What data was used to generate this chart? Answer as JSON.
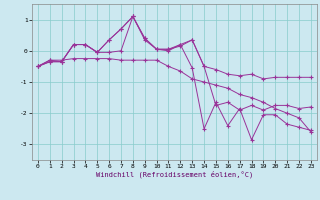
{
  "xlabel": "Windchill (Refroidissement éolien,°C)",
  "background_color": "#cce8f0",
  "line_color": "#993399",
  "grid_color": "#88cccc",
  "xlim": [
    -0.5,
    23.5
  ],
  "ylim": [
    -3.5,
    1.5
  ],
  "yticks": [
    -3,
    -2,
    -1,
    0,
    1
  ],
  "xticks": [
    0,
    1,
    2,
    3,
    4,
    5,
    6,
    7,
    8,
    9,
    10,
    11,
    12,
    13,
    14,
    15,
    16,
    17,
    18,
    19,
    20,
    21,
    22,
    23
  ],
  "series1_x": [
    0,
    1,
    2,
    3,
    4,
    5,
    6,
    7,
    8,
    9,
    10,
    11,
    12,
    13,
    14,
    15,
    16,
    17,
    18,
    19,
    20,
    21,
    22,
    23
  ],
  "series1_y": [
    -0.5,
    -0.35,
    -0.35,
    0.2,
    0.2,
    -0.05,
    -0.05,
    0.0,
    1.1,
    0.35,
    0.05,
    0.05,
    0.15,
    0.35,
    -0.5,
    -0.6,
    -0.75,
    -0.8,
    -0.75,
    -0.9,
    -0.85,
    -0.85,
    -0.85,
    -0.85
  ],
  "series2_x": [
    0,
    1,
    2,
    3,
    4,
    5,
    6,
    7,
    8,
    9,
    10,
    11,
    12,
    13,
    14,
    15,
    16,
    17,
    18,
    19,
    20,
    21,
    22,
    23
  ],
  "series2_y": [
    -0.5,
    -0.35,
    -0.35,
    0.2,
    0.2,
    -0.05,
    0.35,
    0.7,
    1.1,
    0.4,
    0.05,
    0.0,
    0.2,
    0.35,
    -0.5,
    -1.75,
    -1.65,
    -1.9,
    -1.75,
    -1.9,
    -1.75,
    -1.75,
    -1.85,
    -1.8
  ],
  "series3_x": [
    0,
    1,
    2,
    3,
    4,
    5,
    6,
    7,
    8,
    9,
    10,
    11,
    12,
    13,
    14,
    15,
    16,
    17,
    18,
    19,
    20,
    21,
    22,
    23
  ],
  "series3_y": [
    -0.5,
    -0.3,
    -0.35,
    0.2,
    0.2,
    -0.05,
    0.35,
    0.7,
    1.1,
    0.4,
    0.05,
    0.05,
    0.2,
    -0.55,
    -2.5,
    -1.65,
    -2.4,
    -1.85,
    -2.85,
    -2.05,
    -2.05,
    -2.35,
    -2.45,
    -2.55
  ],
  "series4_x": [
    0,
    1,
    2,
    3,
    4,
    5,
    6,
    7,
    8,
    9,
    10,
    11,
    12,
    13,
    14,
    15,
    16,
    17,
    18,
    19,
    20,
    21,
    22,
    23
  ],
  "series4_y": [
    -0.5,
    -0.3,
    -0.3,
    -0.25,
    -0.25,
    -0.25,
    -0.25,
    -0.3,
    -0.3,
    -0.3,
    -0.3,
    -0.5,
    -0.65,
    -0.9,
    -1.0,
    -1.1,
    -1.2,
    -1.4,
    -1.5,
    -1.65,
    -1.85,
    -2.0,
    -2.15,
    -2.6
  ]
}
